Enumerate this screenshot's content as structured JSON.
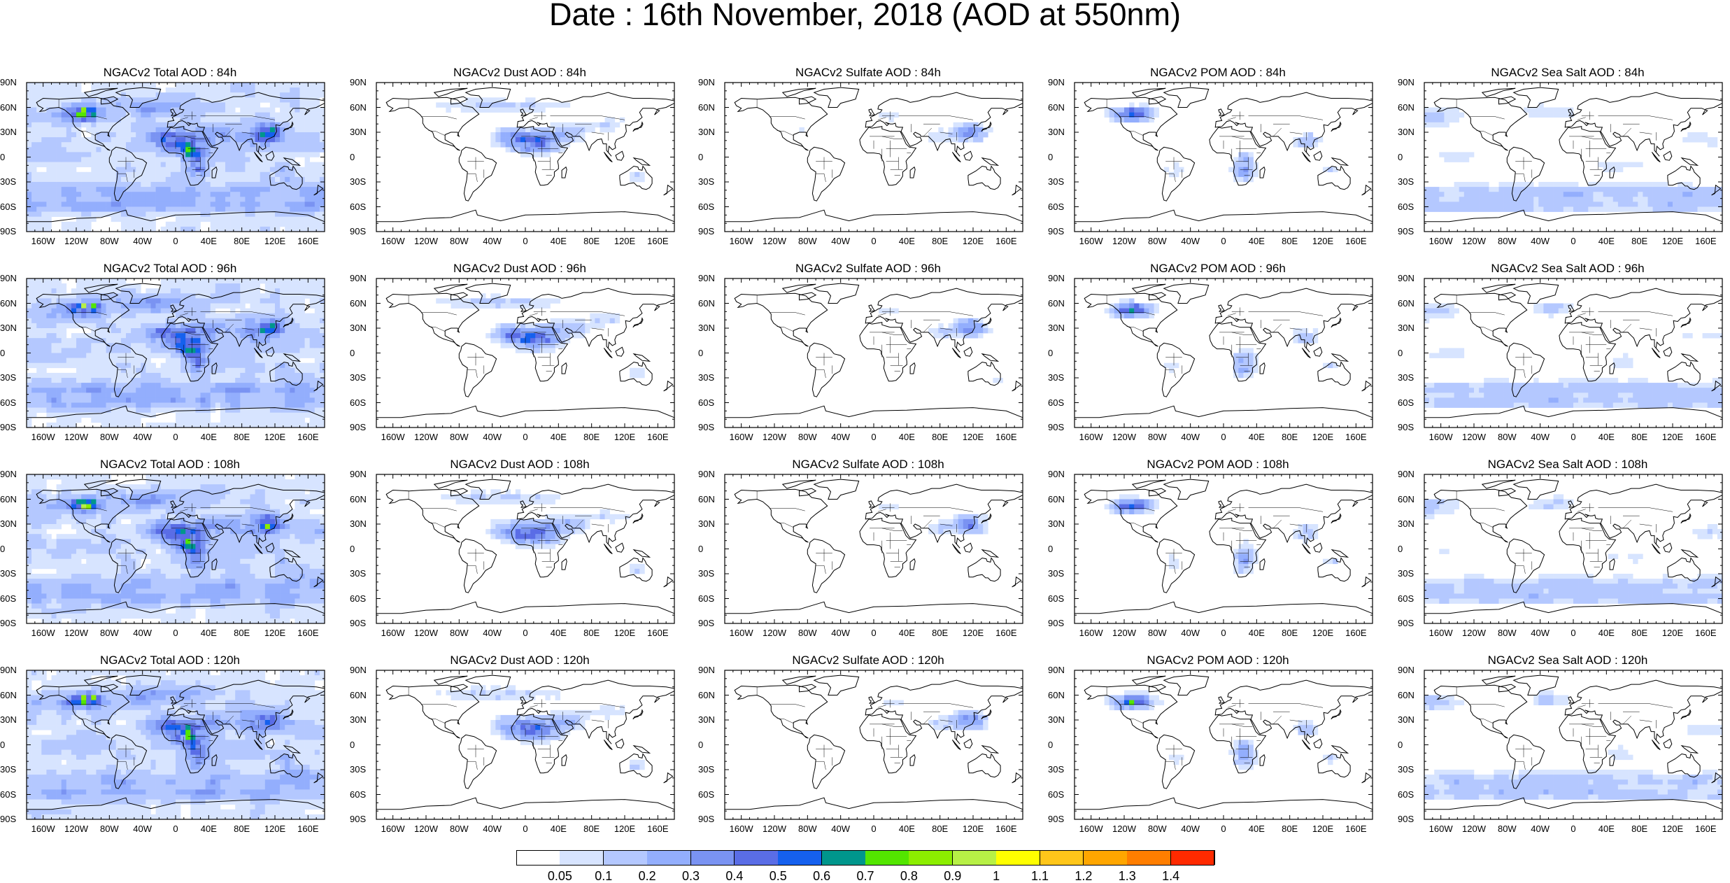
{
  "title": "Date : 16th November, 2018 (AOD at 550nm)",
  "lat_ticks": [
    "90N",
    "60N",
    "30N",
    "0",
    "30S",
    "60S",
    "90S"
  ],
  "lon_ticks": [
    "160W",
    "120W",
    "80W",
    "40W",
    "0",
    "40E",
    "80E",
    "120E",
    "160E"
  ],
  "colorbar": {
    "colors": [
      "#ffffff",
      "#d7e4ff",
      "#b4c8ff",
      "#93aefd",
      "#7a93f2",
      "#5a6de6",
      "#1560ee",
      "#00968c",
      "#53e600",
      "#8cee00",
      "#b7f046",
      "#ffff00",
      "#ffc61a",
      "#ffa600",
      "#ff7e00",
      "#ff2a00"
    ],
    "labels": [
      "0.05",
      "0.1",
      "0.2",
      "0.3",
      "0.4",
      "0.5",
      "0.6",
      "0.7",
      "0.8",
      "0.9",
      "1",
      "1.1",
      "1.2",
      "1.3",
      "1.4"
    ]
  },
  "panels": [
    {
      "title": "NGACv2 Total AOD : 84h",
      "species": "total",
      "hour": "84h"
    },
    {
      "title": "NGACv2 Dust AOD : 84h",
      "species": "dust",
      "hour": "84h"
    },
    {
      "title": "NGACv2 Sulfate AOD : 84h",
      "species": "sulfate",
      "hour": "84h"
    },
    {
      "title": "NGACv2 POM AOD : 84h",
      "species": "pom",
      "hour": "84h"
    },
    {
      "title": "NGACv2 Sea Salt AOD : 84h",
      "species": "seasalt",
      "hour": "84h"
    },
    {
      "title": "NGACv2 Total AOD : 96h",
      "species": "total",
      "hour": "96h"
    },
    {
      "title": "NGACv2 Dust AOD : 96h",
      "species": "dust",
      "hour": "96h"
    },
    {
      "title": "NGACv2 Sulfate AOD : 96h",
      "species": "sulfate",
      "hour": "96h"
    },
    {
      "title": "NGACv2 POM AOD : 96h",
      "species": "pom",
      "hour": "96h"
    },
    {
      "title": "NGACv2 Sea Salt AOD : 96h",
      "species": "seasalt",
      "hour": "96h"
    },
    {
      "title": "NGACv2 Total AOD : 108h",
      "species": "total",
      "hour": "108h"
    },
    {
      "title": "NGACv2 Dust AOD : 108h",
      "species": "dust",
      "hour": "108h"
    },
    {
      "title": "NGACv2 Sulfate AOD : 108h",
      "species": "sulfate",
      "hour": "108h"
    },
    {
      "title": "NGACv2 POM AOD : 108h",
      "species": "pom",
      "hour": "108h"
    },
    {
      "title": "NGACv2 Sea Salt AOD : 108h",
      "species": "seasalt",
      "hour": "108h"
    },
    {
      "title": "NGACv2 Total AOD : 120h",
      "species": "total",
      "hour": "120h"
    },
    {
      "title": "NGACv2 Dust AOD : 120h",
      "species": "dust",
      "hour": "120h"
    },
    {
      "title": "NGACv2 Sulfate AOD : 120h",
      "species": "sulfate",
      "hour": "120h"
    },
    {
      "title": "NGACv2 POM AOD : 120h",
      "species": "pom",
      "hour": "120h"
    },
    {
      "title": "NGACv2 Sea Salt  AOD : 120h",
      "species": "seasalt",
      "hour": "120h"
    }
  ]
}
